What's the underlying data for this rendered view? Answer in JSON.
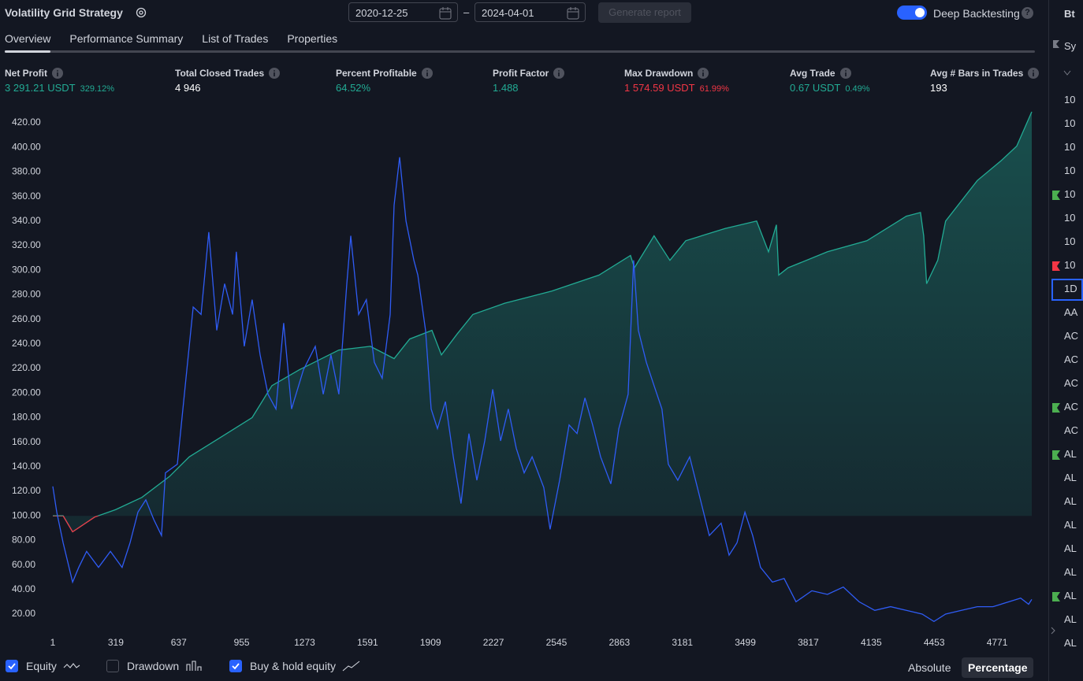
{
  "header": {
    "title": "Volatility Grid Strategy",
    "date_from": "2020-12-25",
    "date_separator": "–",
    "date_to": "2024-04-01",
    "generate_button": "Generate report",
    "deep_backtesting": {
      "label": "Deep Backtesting",
      "enabled": true
    },
    "help": "?"
  },
  "tabs": {
    "items": [
      "Overview",
      "Performance Summary",
      "List of Trades",
      "Properties"
    ],
    "active": 0
  },
  "metrics": [
    {
      "label": "Net Profit",
      "value": "3 291.21 USDT",
      "percent": "329.12%",
      "color": "#22ab94"
    },
    {
      "label": "Total Closed Trades",
      "value": "4 946",
      "color": "#ffffff"
    },
    {
      "label": "Percent Profitable",
      "value": "64.52%",
      "color": "#22ab94"
    },
    {
      "label": "Profit Factor",
      "value": "1.488",
      "color": "#22ab94"
    },
    {
      "label": "Max Drawdown",
      "value": "1 574.59 USDT",
      "percent": "61.99%",
      "color": "#f23645"
    },
    {
      "label": "Avg Trade",
      "value": "0.67 USDT",
      "percent": "0.49%",
      "color": "#22ab94"
    },
    {
      "label": "Avg # Bars in Trades",
      "value": "193",
      "color": "#ffffff"
    }
  ],
  "chart_data": {
    "type": "line",
    "xlim": [
      1,
      4946
    ],
    "ylim": [
      10,
      440
    ],
    "xticks": [
      1,
      319,
      637,
      955,
      1273,
      1591,
      1909,
      2227,
      2545,
      2863,
      3181,
      3499,
      3817,
      4135,
      4453,
      4771
    ],
    "yticks": [
      {
        "value": 20,
        "label": "20.00"
      },
      {
        "value": 40,
        "label": "40.00"
      },
      {
        "value": 60,
        "label": "60.00"
      },
      {
        "value": 80,
        "label": "80.00"
      },
      {
        "value": 100,
        "label": "100.00"
      },
      {
        "value": 120,
        "label": "120.00"
      },
      {
        "value": 140,
        "label": "140.00"
      },
      {
        "value": 160,
        "label": "160.00"
      },
      {
        "value": 180,
        "label": "180.00"
      },
      {
        "value": 200,
        "label": "200.00"
      },
      {
        "value": 220,
        "label": "220.00"
      },
      {
        "value": 240,
        "label": "240.00"
      },
      {
        "value": 260,
        "label": "260.00"
      },
      {
        "value": 280,
        "label": "280.00"
      },
      {
        "value": 300,
        "label": "300.00"
      },
      {
        "value": 320,
        "label": "320.00"
      },
      {
        "value": 340,
        "label": "340.00"
      },
      {
        "value": 360,
        "label": "360.00"
      },
      {
        "value": 380,
        "label": "380.00"
      },
      {
        "value": 400,
        "label": "400.00"
      },
      {
        "value": 420,
        "label": "420.00"
      }
    ],
    "grid": false,
    "baseline": 100,
    "series": [
      {
        "name": "Equity",
        "checked": true,
        "fill": true,
        "color": "#22ab94",
        "negative_color": "#f23645",
        "x": [
          1,
          53,
          101,
          212,
          318,
          451,
          590,
          690,
          849,
          1008,
          1108,
          1247,
          1446,
          1605,
          1725,
          1804,
          1916,
          1964,
          2043,
          2123,
          2282,
          2521,
          2760,
          2919,
          2939,
          3038,
          3118,
          3198,
          3397,
          3556,
          3616,
          3656,
          3668,
          3715,
          3914,
          4113,
          4312,
          4384,
          4400,
          4415,
          4471,
          4511,
          4671,
          4790,
          4870,
          4946
        ],
        "values": [
          100,
          100,
          87,
          99,
          105,
          115,
          132,
          148,
          164,
          180,
          206,
          219,
          235,
          238,
          228,
          244,
          251,
          231,
          248,
          264,
          273,
          283,
          296,
          312,
          302,
          328,
          308,
          324,
          334,
          340,
          315,
          337,
          296,
          302,
          315,
          324,
          344,
          347,
          328,
          289,
          308,
          340,
          373,
          389,
          401,
          429
        ]
      },
      {
        "name": "Drawdown",
        "checked": false,
        "x": [],
        "values": []
      },
      {
        "name": "Buy & hold equity",
        "checked": true,
        "fill": false,
        "color": "#2f5cf5",
        "x": [
          1,
          21,
          53,
          101,
          132,
          172,
          232,
          292,
          351,
          391,
          431,
          471,
          511,
          550,
          570,
          630,
          650,
          682,
          710,
          750,
          789,
          829,
          869,
          909,
          928,
          968,
          1008,
          1048,
          1088,
          1128,
          1167,
          1207,
          1267,
          1327,
          1367,
          1406,
          1446,
          1486,
          1506,
          1546,
          1585,
          1625,
          1665,
          1705,
          1725,
          1753,
          1785,
          1825,
          1845,
          1884,
          1912,
          1944,
          1984,
          2024,
          2063,
          2103,
          2143,
          2183,
          2223,
          2263,
          2302,
          2342,
          2382,
          2422,
          2481,
          2513,
          2561,
          2609,
          2649,
          2689,
          2728,
          2768,
          2820,
          2860,
          2907,
          2935,
          2959,
          2999,
          3038,
          3078,
          3110,
          3158,
          3218,
          3257,
          3317,
          3377,
          3417,
          3457,
          3497,
          3536,
          3576,
          3636,
          3695,
          3755,
          3835,
          3914,
          3994,
          4074,
          4153,
          4233,
          4312,
          4392,
          4452,
          4511,
          4591,
          4671,
          4750,
          4830,
          4890,
          4930,
          4946
        ],
        "values": [
          124,
          103,
          78,
          46,
          58,
          71,
          58,
          71,
          58,
          78,
          103,
          113,
          97,
          84,
          135,
          142,
          174,
          225,
          270,
          264,
          331,
          251,
          289,
          264,
          315,
          238,
          276,
          231,
          199,
          187,
          257,
          187,
          219,
          238,
          199,
          231,
          199,
          289,
          328,
          264,
          276,
          225,
          212,
          264,
          353,
          392,
          340,
          308,
          296,
          251,
          187,
          171,
          193,
          148,
          110,
          167,
          129,
          161,
          203,
          161,
          187,
          155,
          135,
          148,
          123,
          89,
          129,
          174,
          167,
          196,
          174,
          148,
          126,
          171,
          199,
          308,
          251,
          225,
          206,
          187,
          142,
          129,
          148,
          123,
          84,
          94,
          68,
          78,
          103,
          84,
          58,
          46,
          49,
          30,
          39,
          36,
          42,
          30,
          23,
          26,
          23,
          20,
          14,
          20,
          23,
          26,
          26,
          30,
          33,
          28,
          32
        ]
      }
    ]
  },
  "scale_modes": {
    "items": [
      "Absolute",
      "Percentage"
    ],
    "active": 1
  },
  "right_panel": {
    "header": "Bt",
    "search": "Sy",
    "selected": 8,
    "items": [
      {
        "text": "10"
      },
      {
        "text": "10"
      },
      {
        "text": "10"
      },
      {
        "text": "10"
      },
      {
        "text": "10",
        "flag": "#4caf50"
      },
      {
        "text": "10"
      },
      {
        "text": "10"
      },
      {
        "text": "10",
        "flag": "#f23645"
      },
      {
        "text": "1D"
      },
      {
        "text": "AA"
      },
      {
        "text": "AC"
      },
      {
        "text": "AC"
      },
      {
        "text": "AC"
      },
      {
        "text": "AC",
        "flag": "#4caf50"
      },
      {
        "text": "AC"
      },
      {
        "text": "AL",
        "flag": "#4caf50"
      },
      {
        "text": "AL"
      },
      {
        "text": "AL"
      },
      {
        "text": "AL"
      },
      {
        "text": "AL"
      },
      {
        "text": "AL"
      },
      {
        "text": "AL",
        "flag": "#4caf50"
      },
      {
        "text": "AL"
      },
      {
        "text": "AL"
      }
    ]
  }
}
